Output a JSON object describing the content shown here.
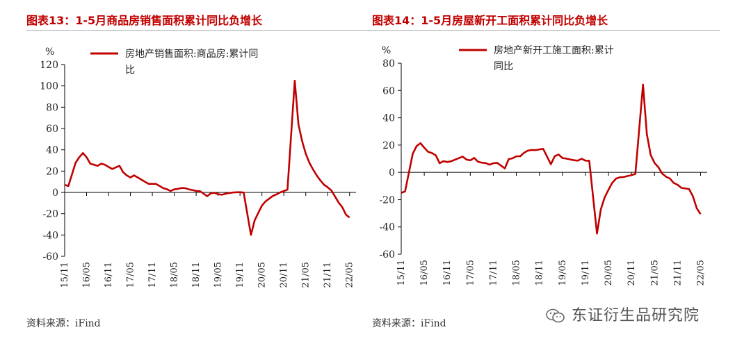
{
  "charts": [
    {
      "title": "图表13：1-5月商品房销售面积累计同比负增长",
      "source": "资料来源：iFind",
      "unit": "%",
      "legend_label_line1": "房地产销售面积:商品房:累计同",
      "legend_label_line2": "比",
      "ylim": [
        -60,
        120
      ],
      "yticks": [
        -60,
        -40,
        -20,
        0,
        20,
        40,
        60,
        80,
        100,
        120
      ],
      "xticks": [
        "15/11",
        "16/05",
        "16/11",
        "17/05",
        "17/11",
        "18/05",
        "18/11",
        "19/05",
        "19/11",
        "20/05",
        "20/11",
        "21/05",
        "21/11",
        "22/05"
      ]
    },
    {
      "title": "图表14：1-5月房屋新开工面积累计同比负增长",
      "source": "资料来源：iFind",
      "unit": "%",
      "legend_label_line1": "房地产新开工施工面积:累计",
      "legend_label_line2": "同比",
      "ylim": [
        -60,
        80
      ],
      "yticks": [
        -60,
        -40,
        -20,
        0,
        20,
        40,
        60,
        80
      ],
      "xticks": [
        "15/11",
        "16/05",
        "16/11",
        "17/05",
        "17/11",
        "18/05",
        "18/11",
        "19/05",
        "19/11",
        "20/05",
        "20/11",
        "21/05",
        "21/11",
        "22/05"
      ]
    }
  ],
  "chart_data": [
    {
      "type": "line",
      "title": "图表13：1-5月商品房销售面积累计同比负增长",
      "xlabel": "",
      "ylabel": "%",
      "ylim": [
        -60,
        120
      ],
      "grid": false,
      "legend_position": "top",
      "color": "#c00000",
      "series": [
        {
          "name": "房地产销售面积:商品房:累计同比",
          "points": [
            [
              "2015-11",
              7
            ],
            [
              "2015-12",
              6
            ],
            [
              "2016-02",
              28
            ],
            [
              "2016-03",
              33
            ],
            [
              "2016-04",
              37
            ],
            [
              "2016-05",
              33
            ],
            [
              "2016-06",
              27
            ],
            [
              "2016-07",
              26
            ],
            [
              "2016-08",
              25
            ],
            [
              "2016-09",
              27
            ],
            [
              "2016-10",
              26
            ],
            [
              "2016-11",
              24
            ],
            [
              "2016-12",
              22
            ],
            [
              "2017-02",
              25
            ],
            [
              "2017-03",
              19
            ],
            [
              "2017-04",
              16
            ],
            [
              "2017-05",
              14
            ],
            [
              "2017-06",
              16
            ],
            [
              "2017-07",
              14
            ],
            [
              "2017-08",
              12
            ],
            [
              "2017-09",
              10
            ],
            [
              "2017-10",
              8
            ],
            [
              "2017-11",
              8
            ],
            [
              "2017-12",
              8
            ],
            [
              "2018-02",
              4
            ],
            [
              "2018-03",
              3
            ],
            [
              "2018-04",
              1.3
            ],
            [
              "2018-05",
              2.9
            ],
            [
              "2018-06",
              3.3
            ],
            [
              "2018-07",
              4.2
            ],
            [
              "2018-08",
              4.0
            ],
            [
              "2018-09",
              2.9
            ],
            [
              "2018-10",
              2.2
            ],
            [
              "2018-11",
              1.4
            ],
            [
              "2018-12",
              1.3
            ],
            [
              "2019-02",
              -3.6
            ],
            [
              "2019-03",
              -0.9
            ],
            [
              "2019-04",
              -0.3
            ],
            [
              "2019-05",
              -1.6
            ],
            [
              "2019-06",
              -2.2
            ],
            [
              "2019-07",
              -1.3
            ],
            [
              "2019-08",
              -0.6
            ],
            [
              "2019-09",
              -0.1
            ],
            [
              "2019-10",
              0.1
            ],
            [
              "2019-11",
              0.2
            ],
            [
              "2019-12",
              -0.1
            ],
            [
              "2020-02",
              -39.9
            ],
            [
              "2020-03",
              -26.3
            ],
            [
              "2020-04",
              -19.3
            ],
            [
              "2020-05",
              -12.3
            ],
            [
              "2020-06",
              -8.4
            ],
            [
              "2020-07",
              -5.8
            ],
            [
              "2020-08",
              -3.3
            ],
            [
              "2020-09",
              -1.8
            ],
            [
              "2020-10",
              0
            ],
            [
              "2020-11",
              1.3
            ],
            [
              "2020-12",
              2.6
            ],
            [
              "2021-02",
              104.9
            ],
            [
              "2021-03",
              63.8
            ],
            [
              "2021-04",
              48.1
            ],
            [
              "2021-05",
              36.3
            ],
            [
              "2021-06",
              27.7
            ],
            [
              "2021-07",
              21.5
            ],
            [
              "2021-08",
              15.9
            ],
            [
              "2021-09",
              11.3
            ],
            [
              "2021-10",
              7.2
            ],
            [
              "2021-11",
              4.8
            ],
            [
              "2021-12",
              1.9
            ],
            [
              "2022-02",
              -9.6
            ],
            [
              "2022-03",
              -13.8
            ],
            [
              "2022-04",
              -20.9
            ],
            [
              "2022-05",
              -23.6
            ]
          ]
        }
      ]
    },
    {
      "type": "line",
      "title": "图表14：1-5月房屋新开工面积累计同比负增长",
      "xlabel": "",
      "ylabel": "%",
      "ylim": [
        -60,
        80
      ],
      "grid": false,
      "legend_position": "top",
      "color": "#c00000",
      "series": [
        {
          "name": "房地产新开工施工面积:累计同比",
          "points": [
            [
              "2015-11",
              -15
            ],
            [
              "2015-12",
              -14
            ],
            [
              "2016-02",
              13.7
            ],
            [
              "2016-03",
              19.2
            ],
            [
              "2016-04",
              21.4
            ],
            [
              "2016-05",
              18.1
            ],
            [
              "2016-06",
              15.1
            ],
            [
              "2016-07",
              14.1
            ],
            [
              "2016-08",
              12.5
            ],
            [
              "2016-09",
              6.7
            ],
            [
              "2016-10",
              8.2
            ],
            [
              "2016-11",
              7.6
            ],
            [
              "2016-12",
              8.1
            ],
            [
              "2017-02",
              10.4
            ],
            [
              "2017-03",
              11.6
            ],
            [
              "2017-04",
              9.4
            ],
            [
              "2017-05",
              8.8
            ],
            [
              "2017-06",
              10.6
            ],
            [
              "2017-07",
              7.8
            ],
            [
              "2017-08",
              7.1
            ],
            [
              "2017-09",
              6.8
            ],
            [
              "2017-10",
              5.6
            ],
            [
              "2017-11",
              6.7
            ],
            [
              "2017-12",
              7.0
            ],
            [
              "2018-02",
              2.9
            ],
            [
              "2018-03",
              9.7
            ],
            [
              "2018-04",
              10.3
            ],
            [
              "2018-05",
              11.8
            ],
            [
              "2018-06",
              11.8
            ],
            [
              "2018-07",
              14.4
            ],
            [
              "2018-08",
              15.9
            ],
            [
              "2018-09",
              16.4
            ],
            [
              "2018-10",
              16.3
            ],
            [
              "2018-11",
              16.8
            ],
            [
              "2018-12",
              17.2
            ],
            [
              "2019-02",
              6.0
            ],
            [
              "2019-03",
              11.9
            ],
            [
              "2019-04",
              13.1
            ],
            [
              "2019-05",
              10.5
            ],
            [
              "2019-06",
              10.1
            ],
            [
              "2019-07",
              9.5
            ],
            [
              "2019-08",
              8.9
            ],
            [
              "2019-09",
              8.6
            ],
            [
              "2019-10",
              10.0
            ],
            [
              "2019-11",
              8.6
            ],
            [
              "2019-12",
              8.5
            ],
            [
              "2020-02",
              -44.9
            ],
            [
              "2020-03",
              -27.2
            ],
            [
              "2020-04",
              -18.4
            ],
            [
              "2020-05",
              -12.8
            ],
            [
              "2020-06",
              -7.6
            ],
            [
              "2020-07",
              -4.5
            ],
            [
              "2020-08",
              -3.6
            ],
            [
              "2020-09",
              -3.4
            ],
            [
              "2020-10",
              -2.7
            ],
            [
              "2020-11",
              -2.0
            ],
            [
              "2020-12",
              -1.2
            ],
            [
              "2021-02",
              64.3
            ],
            [
              "2021-03",
              28.2
            ],
            [
              "2021-04",
              12.8
            ],
            [
              "2021-05",
              6.9
            ],
            [
              "2021-06",
              3.8
            ],
            [
              "2021-07",
              -0.9
            ],
            [
              "2021-08",
              -3.2
            ],
            [
              "2021-09",
              -4.5
            ],
            [
              "2021-10",
              -7.7
            ],
            [
              "2021-11",
              -9.1
            ],
            [
              "2021-12",
              -11.4
            ],
            [
              "2022-02",
              -12.2
            ],
            [
              "2022-03",
              -17.5
            ],
            [
              "2022-04",
              -26.3
            ],
            [
              "2022-05",
              -30.6
            ]
          ]
        }
      ]
    }
  ],
  "watermark": {
    "text": "东证衍生品研究院",
    "icon": "wechat-icon"
  }
}
